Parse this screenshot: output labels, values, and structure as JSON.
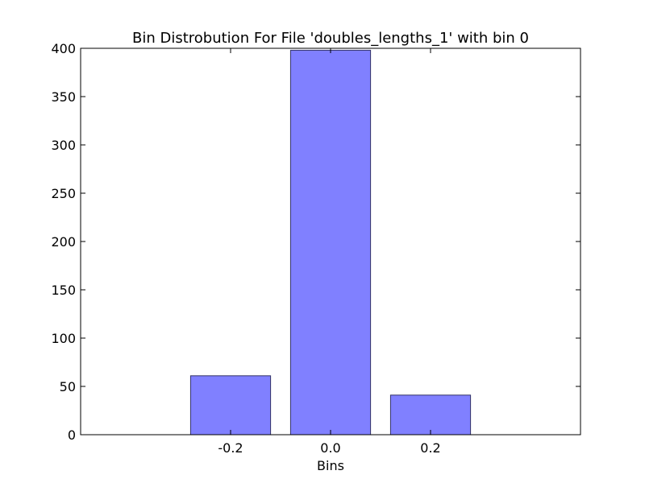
{
  "chart_data": {
    "type": "bar",
    "title": "Bin Distrobution For File 'doubles_lengths_1' with bin 0",
    "xlabel": "Bins",
    "ylabel": "",
    "categories": [
      "-0.2",
      "0.0",
      "0.2"
    ],
    "values": [
      61,
      398,
      41
    ],
    "ylim": [
      0,
      400
    ],
    "yticks": [
      "0",
      "50",
      "100",
      "150",
      "200",
      "250",
      "300",
      "350",
      "400"
    ],
    "grid": false,
    "legend": "none",
    "colors": {
      "bar_fill": "#8080ff",
      "bar_edge": "#333366",
      "axis": "#000000"
    }
  }
}
